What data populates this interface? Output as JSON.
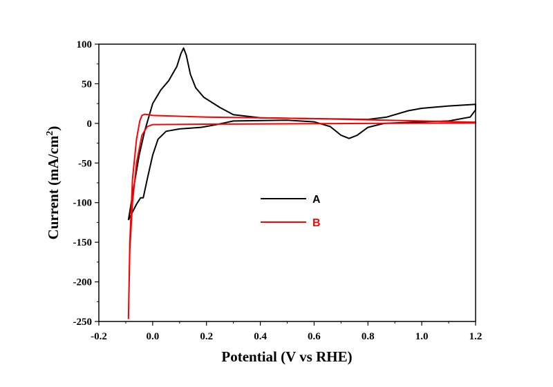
{
  "chart_data": {
    "type": "line",
    "title": "",
    "xlabel": "Potential (V vs RHE)",
    "ylabel": "Current (mA/cm",
    "ylabel_sup": "2",
    "ylabel_close": ")",
    "xlim": [
      -0.2,
      1.2
    ],
    "ylim": [
      -250,
      100
    ],
    "xticks": [
      -0.2,
      0.0,
      0.2,
      0.4,
      0.6,
      0.8,
      1.0,
      1.2
    ],
    "xtick_labels": [
      "-0.2",
      "0.0",
      "0.2",
      "0.4",
      "0.6",
      "0.8",
      "1.0",
      "1.2"
    ],
    "yticks": [
      100,
      50,
      0,
      -50,
      -100,
      -150,
      -200,
      -250
    ],
    "ytick_labels": [
      "100",
      "50",
      "0",
      "-50",
      "-100",
      "-150",
      "-200",
      "-250"
    ],
    "grid": false,
    "legend_position": "center",
    "series": [
      {
        "name": "A",
        "color": "#000000",
        "points": [
          [
            -0.09,
            -122
          ],
          [
            -0.07,
            -80
          ],
          [
            -0.05,
            -40
          ],
          [
            -0.03,
            -10
          ],
          [
            0.0,
            25
          ],
          [
            0.03,
            42
          ],
          [
            0.06,
            54
          ],
          [
            0.09,
            72
          ],
          [
            0.105,
            88
          ],
          [
            0.115,
            95
          ],
          [
            0.125,
            86
          ],
          [
            0.14,
            62
          ],
          [
            0.16,
            45
          ],
          [
            0.19,
            33
          ],
          [
            0.25,
            20
          ],
          [
            0.3,
            11
          ],
          [
            0.4,
            7
          ],
          [
            0.6,
            6
          ],
          [
            0.8,
            5
          ],
          [
            0.87,
            8
          ],
          [
            0.95,
            16
          ],
          [
            1.0,
            19
          ],
          [
            1.1,
            22
          ],
          [
            1.2,
            24
          ],
          [
            1.2,
            17
          ],
          [
            1.18,
            8
          ],
          [
            1.1,
            3
          ],
          [
            1.0,
            2
          ],
          [
            0.86,
            0
          ],
          [
            0.8,
            -5
          ],
          [
            0.76,
            -15
          ],
          [
            0.73,
            -19
          ],
          [
            0.7,
            -15
          ],
          [
            0.66,
            -4
          ],
          [
            0.6,
            2
          ],
          [
            0.5,
            4
          ],
          [
            0.3,
            3
          ],
          [
            0.23,
            -2
          ],
          [
            0.18,
            -5
          ],
          [
            0.1,
            -7
          ],
          [
            0.05,
            -10
          ],
          [
            0.02,
            -20
          ],
          [
            0.0,
            -40
          ],
          [
            -0.02,
            -70
          ],
          [
            -0.035,
            -94
          ],
          [
            -0.045,
            -94
          ],
          [
            -0.06,
            -102
          ],
          [
            -0.09,
            -122
          ]
        ]
      },
      {
        "name": "B",
        "color": "#ff0000",
        "points": [
          [
            -0.09,
            -247
          ],
          [
            -0.085,
            -150
          ],
          [
            -0.075,
            -70
          ],
          [
            -0.06,
            -20
          ],
          [
            -0.048,
            3
          ],
          [
            -0.04,
            10
          ],
          [
            -0.03,
            11.5
          ],
          [
            -0.015,
            11
          ],
          [
            0.0,
            10
          ],
          [
            0.2,
            8
          ],
          [
            0.6,
            6
          ],
          [
            1.0,
            3
          ],
          [
            1.2,
            1.5
          ],
          [
            1.2,
            0.5
          ],
          [
            0.8,
            0
          ],
          [
            0.2,
            -1
          ],
          [
            0.0,
            -1.5
          ],
          [
            -0.02,
            -4
          ],
          [
            -0.04,
            -15
          ],
          [
            -0.06,
            -50
          ],
          [
            -0.075,
            -100
          ],
          [
            -0.085,
            -160
          ],
          [
            -0.09,
            -247
          ]
        ]
      }
    ]
  }
}
